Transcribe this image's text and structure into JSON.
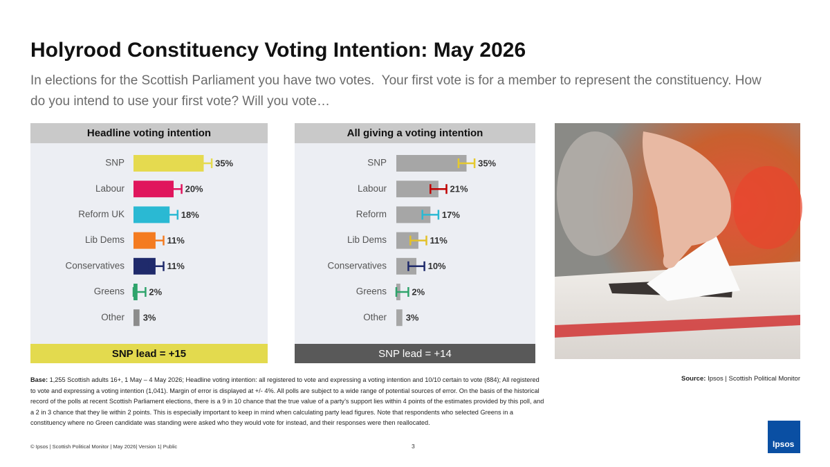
{
  "title": "Holyrood Constituency Voting Intention: May 2026",
  "subtitle": "In elections for the Scottish Parliament you have two votes.  Your first vote is for a member to represent the constituency. How do you intend to use your first vote? Will you vote…",
  "chart_data": [
    {
      "type": "bar",
      "orientation": "horizontal",
      "title": "Headline voting intention",
      "categories": [
        "SNP",
        "Labour",
        "Reform UK",
        "Lib Dems",
        "Conservatives",
        "Greens",
        "Other"
      ],
      "values": [
        35,
        20,
        18,
        11,
        11,
        2,
        3
      ],
      "value_labels": [
        "35%",
        "20%",
        "18%",
        "11%",
        "11%",
        "2%",
        "3%"
      ],
      "errors": [
        4,
        4,
        4,
        4,
        4,
        4,
        null
      ],
      "colors": [
        "#e5da4f",
        "#e0165d",
        "#2ab9d3",
        "#f47b20",
        "#1f2a6b",
        "#2ea36b",
        "#8c8c8c"
      ],
      "error_colors": [
        "#e5da4f",
        "#e0165d",
        "#2ab9d3",
        "#f47b20",
        "#1f2a6b",
        "#2ea36b",
        "#8c8c8c"
      ],
      "annotation": "SNP lead = +15",
      "annotation_color": "#e3da4e"
    },
    {
      "type": "bar",
      "orientation": "horizontal",
      "title": "All giving a voting intention",
      "categories": [
        "SNP",
        "Labour",
        "Reform",
        "Lib Dems",
        "Conservatives",
        "Greens",
        "Other"
      ],
      "values": [
        35,
        21,
        17,
        11,
        10,
        2,
        3
      ],
      "value_labels": [
        "35%",
        "21%",
        "17%",
        "11%",
        "10%",
        "2%",
        "3%"
      ],
      "errors": [
        4,
        4,
        4,
        4,
        4,
        4,
        null
      ],
      "color": "#a6a6a6",
      "error_colors": [
        "#e5c92f",
        "#c00000",
        "#2ab9d3",
        "#e3c12a",
        "#1f2a6b",
        "#2ea36b",
        "#8c8c8c"
      ],
      "annotation": "SNP lead = +14",
      "annotation_color": "#595959"
    }
  ],
  "footnote": {
    "label": "Base:",
    "text": "1,255 Scottish adults 16+, 1  May – 4 May 2026; Headline voting intention: all registered to vote and expressing a voting intention and 10/10 certain to vote (884); All registered to vote and expressing a voting intention (1,041). Margin of error is displayed at +/- 4%. All polls are subject to a wide range of potential sources of error. On the basis of the historical record of the polls at recent Scottish Parliament elections, there is a 9 in 10 chance that the true value of a party’s support lies within 4 points of the estimates provided by this poll, and a 2 in 3 chance that they lie within 2 points. This is especially important to keep in mind when calculating party lead figures. Note that respondents who selected Greens in a constituency where no Green candidate was standing were asked who they would vote for instead, and their responses were then reallocated."
  },
  "source": {
    "label": "Source:",
    "text": "Ipsos | Scottish Political Monitor"
  },
  "footer": "© Ipsos | Scottish Political Monitor | May 2026| Version 1| Public",
  "page_number": "3",
  "logo": "Ipsos"
}
